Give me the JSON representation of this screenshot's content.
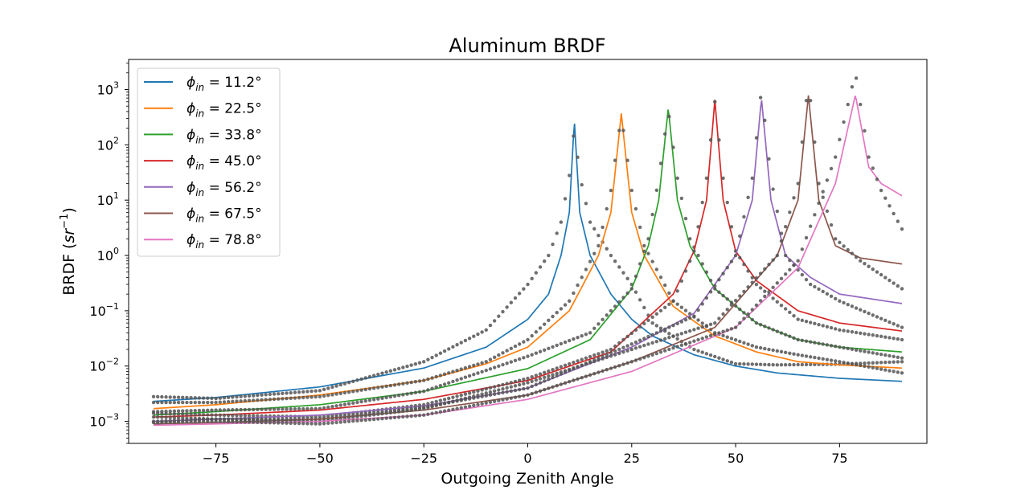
{
  "chart_data": {
    "type": "line",
    "title": "Aluminum BRDF",
    "xlabel": "Outgoing Zenith Angle",
    "ylabel": "BRDF (sr⁻¹)",
    "ylabel_main": "BRDF (",
    "ylabel_unit": "sr",
    "ylabel_sup": "−1",
    "ylabel_close": ")",
    "xlim": [
      -96,
      96
    ],
    "ylim": [
      0.0004,
      3500
    ],
    "yscale": "log",
    "grid": false,
    "legend_position": "top-left",
    "x_ticks": [
      -75,
      -50,
      -25,
      0,
      25,
      50,
      75
    ],
    "x_tick_labels": [
      "−75",
      "−50",
      "−25",
      "0",
      "25",
      "50",
      "75"
    ],
    "y_ticks": [
      0.001,
      0.01,
      0.1,
      1,
      10,
      100,
      1000
    ],
    "y_tick_base": "10",
    "y_tick_exponents": [
      "−3",
      "−2",
      "−1",
      "0",
      "1",
      "2",
      "3"
    ],
    "marker_color": "#555555",
    "series": [
      {
        "name": "ϕin = 11.2°",
        "legend_symbol": "ϕ",
        "legend_sub": "in",
        "legend_value": " = 11.2°",
        "color": "#1f77b4",
        "fit_x": [
          -90,
          -75,
          -50,
          -25,
          -10,
          0,
          5,
          8,
          10,
          11.2,
          12.5,
          15,
          20,
          25,
          30,
          40,
          50,
          60,
          75,
          90
        ],
        "fit_y": [
          0.0023,
          0.0027,
          0.0042,
          0.0092,
          0.022,
          0.07,
          0.2,
          1.0,
          6,
          280,
          6,
          1.0,
          0.2,
          0.07,
          0.035,
          0.016,
          0.01,
          0.0075,
          0.006,
          0.0053
        ],
        "meas_x": [
          -90,
          -75,
          -50,
          -25,
          -10,
          0,
          5,
          8,
          10,
          11.2,
          12.5,
          15,
          20,
          25,
          30,
          40,
          50,
          60,
          75,
          90
        ],
        "meas_y": [
          0.0028,
          0.0026,
          0.0036,
          0.012,
          0.045,
          0.3,
          1.0,
          4,
          28,
          200,
          28,
          4,
          1.0,
          0.3,
          0.06,
          0.02,
          0.011,
          0.0105,
          0.0108,
          0.012
        ]
      },
      {
        "name": "ϕin = 22.5°",
        "legend_symbol": "ϕ",
        "legend_sub": "in",
        "legend_value": " = 22.5°",
        "color": "#ff7f0e",
        "fit_x": [
          -90,
          -75,
          -50,
          -25,
          -10,
          0,
          10,
          17,
          20,
          22.5,
          25,
          28,
          35,
          45,
          55,
          65,
          75,
          90
        ],
        "fit_y": [
          0.0017,
          0.002,
          0.003,
          0.0055,
          0.011,
          0.022,
          0.1,
          1.0,
          6,
          370,
          6,
          1.0,
          0.12,
          0.035,
          0.018,
          0.012,
          0.0105,
          0.0092
        ],
        "meas_x": [
          -90,
          -75,
          -50,
          -25,
          -10,
          0,
          10,
          17,
          20,
          22.5,
          25,
          28,
          35,
          45,
          55,
          65,
          75,
          90
        ],
        "meas_y": [
          0.0022,
          0.0022,
          0.0028,
          0.0055,
          0.012,
          0.03,
          0.15,
          1.5,
          15,
          340,
          15,
          1.5,
          0.15,
          0.04,
          0.022,
          0.016,
          0.012,
          0.0075
        ]
      },
      {
        "name": "ϕin = 33.8°",
        "legend_symbol": "ϕ",
        "legend_sub": "in",
        "legend_value": " = 33.8°",
        "color": "#2ca02c",
        "fit_x": [
          -90,
          -75,
          -50,
          -25,
          0,
          15,
          25,
          29,
          31.5,
          33.8,
          36,
          39,
          45,
          55,
          65,
          75,
          90
        ],
        "fit_y": [
          0.0013,
          0.0015,
          0.002,
          0.0035,
          0.009,
          0.03,
          0.25,
          1.5,
          10,
          470,
          10,
          1.5,
          0.25,
          0.06,
          0.03,
          0.022,
          0.018
        ],
        "meas_x": [
          -90,
          -75,
          -50,
          -25,
          0,
          15,
          25,
          29,
          31.5,
          33.8,
          36,
          39,
          45,
          55,
          65,
          75,
          90
        ],
        "meas_y": [
          0.0015,
          0.0016,
          0.0017,
          0.0035,
          0.015,
          0.04,
          0.25,
          2.0,
          25,
          420,
          25,
          2.0,
          0.25,
          0.06,
          0.03,
          0.022,
          0.014
        ]
      },
      {
        "name": "ϕin = 45.0°",
        "legend_symbol": "ϕ",
        "legend_sub": "in",
        "legend_value": " = 45.0°",
        "color": "#d62728",
        "fit_x": [
          -90,
          -75,
          -50,
          -25,
          0,
          20,
          35,
          40,
          43,
          45,
          47,
          50,
          55,
          65,
          75,
          90
        ],
        "fit_y": [
          0.0012,
          0.0013,
          0.0016,
          0.0025,
          0.0055,
          0.018,
          0.2,
          1.2,
          10,
          650,
          10,
          1.2,
          0.35,
          0.1,
          0.06,
          0.043
        ],
        "meas_x": [
          -90,
          -75,
          -50,
          -25,
          0,
          20,
          35,
          40,
          43,
          45,
          47,
          50,
          55,
          65,
          75,
          90
        ],
        "meas_y": [
          0.0014,
          0.0013,
          0.0012,
          0.002,
          0.006,
          0.02,
          0.15,
          1.2,
          25,
          600,
          25,
          1.2,
          0.3,
          0.07,
          0.045,
          0.03
        ]
      },
      {
        "name": "ϕin = 56.2°",
        "legend_symbol": "ϕ",
        "legend_sub": "in",
        "legend_value": " = 56.2°",
        "color": "#9467bd",
        "fit_x": [
          -90,
          -75,
          -50,
          -25,
          0,
          25,
          40,
          50,
          54,
          56.2,
          58.5,
          62,
          68,
          75,
          90
        ],
        "fit_y": [
          0.001,
          0.0011,
          0.0013,
          0.0019,
          0.004,
          0.022,
          0.09,
          1.0,
          10,
          700,
          10,
          1.0,
          0.4,
          0.2,
          0.135
        ],
        "meas_x": [
          -90,
          -75,
          -50,
          -25,
          0,
          25,
          40,
          50,
          54,
          56.2,
          58.5,
          62,
          68,
          75,
          90
        ],
        "meas_y": [
          0.0012,
          0.0011,
          0.0011,
          0.0018,
          0.004,
          0.025,
          0.08,
          1.0,
          25,
          1000,
          25,
          1.0,
          0.3,
          0.15,
          0.05
        ]
      },
      {
        "name": "ϕin = 67.5°",
        "legend_symbol": "ϕ",
        "legend_sub": "in",
        "legend_value": " = 67.5°",
        "color": "#8c564b",
        "fit_x": [
          -90,
          -75,
          -50,
          -25,
          0,
          25,
          45,
          60,
          65,
          67.5,
          70,
          74,
          80,
          90
        ],
        "fit_y": [
          0.0009,
          0.00095,
          0.0011,
          0.0016,
          0.003,
          0.012,
          0.05,
          1.0,
          10,
          780,
          10,
          1.5,
          0.9,
          0.7
        ],
        "meas_x": [
          -90,
          -75,
          -50,
          -25,
          0,
          25,
          45,
          60,
          65,
          67.5,
          70,
          74,
          80,
          90
        ],
        "meas_y": [
          0.001,
          0.0011,
          0.001,
          0.0017,
          0.005,
          0.02,
          0.06,
          1.0,
          20,
          1500,
          20,
          2.0,
          0.8,
          0.25
        ]
      },
      {
        "name": "ϕin = 78.8°",
        "legend_symbol": "ϕ",
        "legend_sub": "in",
        "legend_value": " = 78.8°",
        "color": "#e377c2",
        "fit_x": [
          -90,
          -75,
          -50,
          -25,
          0,
          25,
          50,
          65,
          74,
          78.8,
          82,
          85,
          90
        ],
        "fit_y": [
          0.00085,
          0.0009,
          0.001,
          0.0013,
          0.0025,
          0.008,
          0.05,
          0.6,
          20,
          800,
          40,
          20,
          12
        ],
        "meas_x": [
          -90,
          -75,
          -50,
          -25,
          0,
          25,
          50,
          65,
          74,
          78.8,
          82,
          85,
          90
        ],
        "meas_y": [
          0.00095,
          0.001,
          0.0009,
          0.0013,
          0.003,
          0.012,
          0.05,
          0.8,
          60,
          2000,
          60,
          15,
          3
        ]
      }
    ]
  }
}
